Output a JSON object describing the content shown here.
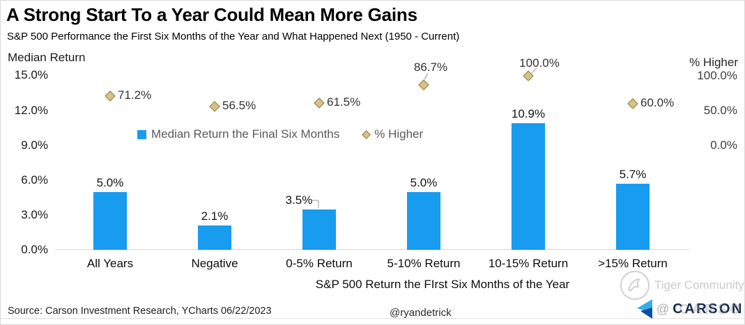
{
  "header": {
    "title": "A Strong Start To a Year Could Mean More Gains",
    "subtitle": "S&P 500 Performance the First Six Months of the Year and What Happened Next (1950 - Current)"
  },
  "chart_data": {
    "type": "combo-bar-scatter",
    "categories": [
      "All Years",
      "Negative",
      "0-5% Return",
      "5-10% Return",
      "10-15% Return",
      ">15% Return"
    ],
    "series": [
      {
        "name": "Median Return the Final Six Months",
        "type": "bar",
        "axis": "left",
        "values": [
          5.0,
          2.1,
          3.5,
          5.0,
          10.9,
          5.7
        ],
        "labels": [
          "5.0%",
          "2.1%",
          "3.5%",
          "5.0%",
          "10.9%",
          "5.7%"
        ]
      },
      {
        "name": "% Higher",
        "type": "scatter",
        "marker": "diamond",
        "axis": "right",
        "values": [
          71.2,
          56.5,
          61.5,
          86.7,
          100.0,
          60.0
        ],
        "labels": [
          "71.2%",
          "56.5%",
          "61.5%",
          "86.7%",
          "100.0%",
          "60.0%"
        ]
      }
    ],
    "left_axis": {
      "title": "Median Return",
      "ticks": [
        "15.0%",
        "12.0%",
        "9.0%",
        "6.0%",
        "3.0%",
        "0.0%"
      ],
      "range": [
        0,
        15
      ],
      "grid": false
    },
    "right_axis": {
      "title": "% Higher",
      "ticks": [
        "100.0%",
        "50.0%",
        "0.0%"
      ],
      "range": [
        0,
        100
      ]
    },
    "xlabel": "S&P 500 Return the FIrst Six Months of the Year",
    "legend_position": "inside-top-left",
    "title": "A Strong Start To a Year Could Mean More Gains",
    "subtitle": "S&P 500 Performance the First Six Months of the Year and What Happened Next (1950 - Current)"
  },
  "legend": {
    "items": [
      {
        "label": "Median Return the Final Six Months",
        "marker": "blue-square"
      },
      {
        "label": "% Higher",
        "marker": "tan-diamond"
      }
    ]
  },
  "footer": {
    "source": "Source: Carson Investment Research, YCharts 06/22/2023",
    "handle": "@ryandetrick"
  },
  "watermarks": {
    "tiger_text": "Tiger Community",
    "logo_text": "CARSON",
    "overlay_text": "@"
  },
  "colors": {
    "bar": "#189CF0",
    "diamond_fill": "#D5C288",
    "diamond_border": "#8E7C3C",
    "legend_text": "#595959",
    "axis_line": "#D6D6D6",
    "leader_line": "#A6A6A6",
    "watermark_gray": "#C8C8C8",
    "logo_navy": "#152A4E",
    "logo_blue_light": "#35ADE8",
    "logo_blue_dark": "#0B4EA2"
  }
}
